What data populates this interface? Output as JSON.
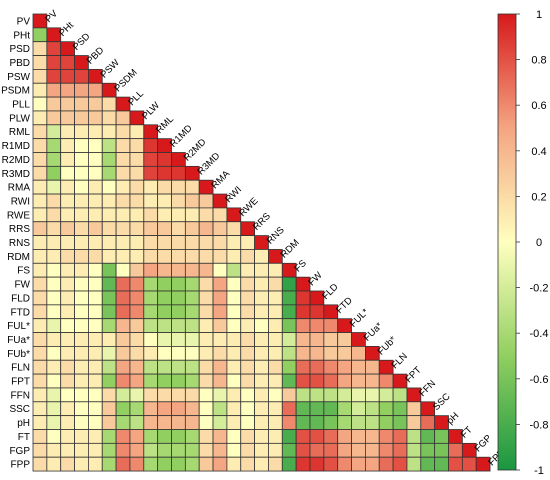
{
  "chart_data": {
    "type": "heatmap",
    "title": "",
    "variables": [
      "PV",
      "PHt",
      "PSD",
      "PBD",
      "PSW",
      "PSDM",
      "PLL",
      "PLW",
      "RML",
      "R1MD",
      "R2MD",
      "R3MD",
      "RMA",
      "RWI",
      "RWE",
      "RRS",
      "RNS",
      "RDM",
      "FS",
      "FW",
      "FLD",
      "FTD",
      "FUL*",
      "FUa*",
      "FUb*",
      "FLN",
      "FPT",
      "FFN",
      "SSC",
      "pH",
      "FT",
      "FGP",
      "FPP"
    ],
    "layout": "lower-triangle",
    "values": [
      [
        1
      ],
      [
        -0.5,
        1
      ],
      [
        0.2,
        0.85,
        1
      ],
      [
        0.2,
        0.85,
        0.85,
        1
      ],
      [
        0.2,
        0.85,
        0.85,
        0.85,
        1
      ],
      [
        0.1,
        0.5,
        0.5,
        0.5,
        0.5,
        1
      ],
      [
        0.0,
        0.3,
        0.3,
        0.3,
        0.3,
        0.2,
        1
      ],
      [
        0.1,
        0.3,
        0.3,
        0.3,
        0.3,
        0.2,
        0.3,
        1
      ],
      [
        0.2,
        -0.2,
        0.1,
        0.1,
        0.1,
        0.1,
        0.2,
        0.1,
        1
      ],
      [
        0.2,
        -0.4,
        0.1,
        0.0,
        0.0,
        -0.3,
        0.2,
        0.2,
        0.9,
        1
      ],
      [
        0.2,
        -0.4,
        0.1,
        0.0,
        0.0,
        -0.4,
        0.2,
        0.2,
        0.85,
        0.9,
        1
      ],
      [
        0.2,
        -0.5,
        0.0,
        0.0,
        0.0,
        -0.4,
        0.2,
        0.2,
        0.85,
        0.9,
        0.9,
        1
      ],
      [
        0.1,
        -0.1,
        0.1,
        0.0,
        0.1,
        0.0,
        0.1,
        0.2,
        0.1,
        0.2,
        0.2,
        0.2,
        1
      ],
      [
        0.1,
        0.2,
        0.1,
        0.1,
        0.1,
        0.1,
        0.2,
        0.2,
        0.1,
        0.1,
        0.2,
        0.3,
        0.3,
        1
      ],
      [
        0.1,
        0.2,
        0.1,
        0.1,
        0.1,
        0.1,
        0.1,
        0.1,
        0.2,
        0.1,
        0.1,
        0.1,
        0.2,
        0.2,
        1
      ],
      [
        0.3,
        0.2,
        0.3,
        0.2,
        0.3,
        0.2,
        0.2,
        0.2,
        0.3,
        0.3,
        0.2,
        0.3,
        0.4,
        0.3,
        0.2,
        1
      ],
      [
        0.1,
        0.1,
        0.1,
        0.1,
        0.1,
        0.1,
        0.1,
        0.1,
        0.2,
        0.2,
        0.2,
        0.2,
        0.2,
        0.2,
        0.1,
        0.1,
        1
      ],
      [
        0.1,
        0.1,
        0.2,
        0.2,
        0.2,
        0.1,
        0.1,
        0.1,
        0.2,
        0.2,
        0.2,
        0.2,
        0.2,
        0.2,
        0.1,
        0.2,
        0.1,
        1
      ],
      [
        0.1,
        0.0,
        0.1,
        0.1,
        0.0,
        -0.6,
        0.0,
        0.3,
        0.5,
        0.4,
        0.4,
        0.4,
        0.4,
        0.0,
        -0.3,
        0.1,
        0.1,
        0.1,
        1
      ],
      [
        0.2,
        0.0,
        0.1,
        0.0,
        0.0,
        -0.7,
        0.7,
        0.6,
        -0.4,
        -0.5,
        -0.5,
        -0.4,
        0.2,
        0.5,
        0.0,
        0.2,
        0.1,
        0.2,
        -0.9,
        1
      ],
      [
        0.2,
        0.0,
        0.1,
        0.0,
        0.0,
        -0.6,
        0.7,
        0.6,
        -0.4,
        -0.5,
        -0.5,
        -0.4,
        0.2,
        0.5,
        0.0,
        0.2,
        0.1,
        0.1,
        -0.8,
        0.9,
        1
      ],
      [
        0.2,
        0.0,
        0.1,
        0.0,
        0.0,
        -0.6,
        0.7,
        0.6,
        -0.4,
        -0.5,
        -0.5,
        -0.4,
        0.2,
        0.5,
        0.0,
        0.2,
        0.1,
        0.1,
        -0.8,
        0.9,
        0.9,
        1
      ],
      [
        0.1,
        -0.1,
        0.0,
        0.0,
        0.0,
        -0.4,
        0.4,
        0.3,
        -0.3,
        -0.3,
        -0.3,
        -0.3,
        0.1,
        0.3,
        0.0,
        0.1,
        0.0,
        0.1,
        -0.6,
        0.6,
        0.6,
        0.6,
        1
      ],
      [
        0.2,
        0.1,
        0.1,
        0.1,
        0.1,
        0.1,
        0.3,
        0.2,
        0.0,
        -0.1,
        -0.1,
        -0.1,
        0.1,
        0.1,
        0.1,
        0.2,
        0.1,
        0.1,
        -0.2,
        0.4,
        0.4,
        0.3,
        0.3,
        1
      ],
      [
        0.2,
        0.0,
        0.1,
        0.1,
        0.1,
        -0.1,
        0.3,
        0.2,
        0.1,
        0.0,
        0.0,
        0.0,
        0.1,
        0.2,
        0.1,
        0.2,
        0.1,
        0.1,
        -0.3,
        0.4,
        0.4,
        0.3,
        0.3,
        0.4,
        1
      ],
      [
        0.2,
        0.1,
        0.2,
        0.1,
        0.1,
        -0.3,
        0.5,
        0.4,
        -0.3,
        -0.3,
        -0.3,
        -0.3,
        0.2,
        0.4,
        0.1,
        0.2,
        0.1,
        0.2,
        -0.5,
        0.7,
        0.7,
        0.6,
        0.5,
        0.4,
        0.4,
        1
      ],
      [
        0.2,
        0.0,
        0.2,
        0.1,
        0.1,
        -0.5,
        0.6,
        0.5,
        -0.4,
        -0.5,
        -0.5,
        -0.4,
        0.2,
        0.4,
        0.0,
        0.2,
        0.1,
        0.1,
        -0.7,
        0.8,
        0.8,
        0.7,
        0.5,
        0.4,
        0.4,
        0.6,
        1
      ],
      [
        0.1,
        -0.1,
        0.0,
        0.0,
        0.0,
        0.2,
        -0.2,
        -0.1,
        0.2,
        0.2,
        0.2,
        0.2,
        0.0,
        -0.1,
        0.1,
        0.0,
        0.1,
        0.0,
        0.3,
        -0.3,
        -0.3,
        -0.3,
        -0.2,
        -0.1,
        -0.1,
        -0.2,
        -0.3,
        1
      ],
      [
        0.1,
        -0.1,
        0.1,
        0.0,
        0.0,
        0.3,
        -0.5,
        -0.4,
        0.4,
        0.5,
        0.5,
        0.4,
        0.0,
        -0.3,
        0.1,
        0.0,
        0.1,
        0.1,
        0.7,
        -0.7,
        -0.7,
        -0.7,
        -0.4,
        -0.2,
        -0.3,
        -0.5,
        -0.6,
        0.3,
        1
      ],
      [
        0.1,
        -0.1,
        0.1,
        0.0,
        0.0,
        0.3,
        -0.4,
        -0.3,
        0.4,
        0.4,
        0.4,
        0.4,
        0.0,
        -0.2,
        0.1,
        0.0,
        0.1,
        0.1,
        0.6,
        -0.7,
        -0.7,
        -0.6,
        -0.4,
        -0.3,
        -0.3,
        -0.5,
        -0.6,
        0.3,
        0.7,
        1
      ],
      [
        0.2,
        0.0,
        0.1,
        0.1,
        0.1,
        -0.4,
        0.6,
        0.5,
        -0.4,
        -0.5,
        -0.5,
        -0.4,
        0.2,
        0.4,
        0.0,
        0.2,
        0.1,
        0.1,
        -0.8,
        0.8,
        0.8,
        0.7,
        0.5,
        0.4,
        0.4,
        0.6,
        0.7,
        -0.3,
        -0.7,
        -0.6,
        1
      ],
      [
        0.2,
        0.1,
        0.1,
        0.1,
        0.1,
        -0.4,
        0.6,
        0.5,
        -0.3,
        -0.4,
        -0.4,
        -0.4,
        0.2,
        0.4,
        0.0,
        0.2,
        0.1,
        0.1,
        -0.7,
        0.8,
        0.7,
        0.7,
        0.5,
        0.4,
        0.4,
        0.6,
        0.7,
        -0.3,
        -0.6,
        -0.6,
        0.7,
        1
      ],
      [
        0.2,
        0.1,
        0.2,
        0.1,
        0.1,
        -0.4,
        0.7,
        0.6,
        -0.4,
        -0.5,
        -0.5,
        -0.4,
        0.3,
        0.5,
        0.1,
        0.2,
        0.1,
        0.2,
        -0.8,
        0.9,
        0.9,
        0.8,
        0.6,
        0.5,
        0.5,
        0.7,
        0.8,
        -0.3,
        -0.7,
        -0.7,
        0.8,
        0.8,
        1
      ]
    ],
    "colorbar": {
      "min": -1,
      "max": 1,
      "ticks": [
        "1",
        "0.8",
        "0.6",
        "0.4",
        "0.2",
        "0",
        "-0.2",
        "-0.4",
        "-0.6",
        "-0.8",
        "-1"
      ],
      "tick_values": [
        1,
        0.8,
        0.6,
        0.4,
        0.2,
        0,
        -0.2,
        -0.4,
        -0.6,
        -0.8,
        -1
      ]
    },
    "colors": {
      "negative": "#1a9641",
      "neutral": "#ffffbf",
      "positive": "#d7191c",
      "grid": "#333333"
    }
  }
}
